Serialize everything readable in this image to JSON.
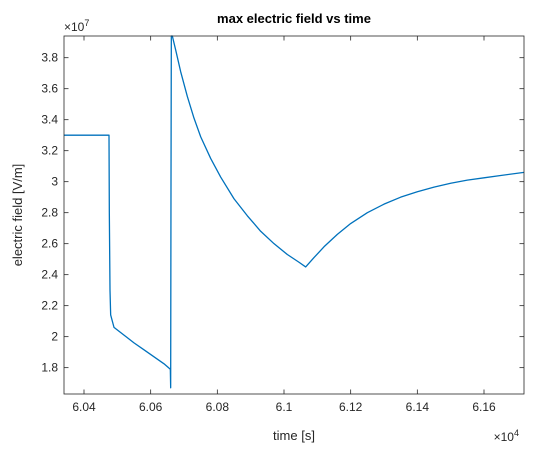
{
  "chart_data": {
    "type": "line",
    "title": "max electric field vs time",
    "xlabel": "time [s]",
    "ylabel": "electric field [V/m]",
    "x_multiplier": {
      "base": "×10",
      "exponent": "4"
    },
    "y_multiplier": {
      "base": "×10",
      "exponent": "7"
    },
    "xlim": [
      6.034,
      6.172
    ],
    "ylim": [
      1.63,
      3.94
    ],
    "x_ticks": [
      6.04,
      6.06,
      6.08,
      6.1,
      6.12,
      6.14,
      6.16
    ],
    "x_tick_labels": [
      "6.04",
      "6.06",
      "6.08",
      "6.1",
      "6.12",
      "6.14",
      "6.16"
    ],
    "y_ticks": [
      1.8,
      2.0,
      2.2,
      2.4,
      2.6,
      2.8,
      3.0,
      3.2,
      3.4,
      3.6,
      3.8
    ],
    "y_tick_labels": [
      "1.8",
      "2",
      "2.2",
      "2.4",
      "2.6",
      "2.8",
      "3",
      "3.2",
      "3.4",
      "3.6",
      "3.8"
    ],
    "grid": false,
    "line_color": "#0072BD",
    "series": [
      {
        "x": [
          6.034,
          6.0475,
          6.0476,
          6.0478,
          6.048,
          6.049,
          6.052,
          6.055,
          6.058,
          6.061,
          6.064,
          6.0659,
          6.066,
          6.0661,
          6.0662,
          6.0665,
          6.0675,
          6.069,
          6.071,
          6.073,
          6.075,
          6.078,
          6.081,
          6.085,
          6.089,
          6.093,
          6.097,
          6.101,
          6.1045,
          6.1065,
          6.109,
          6.112,
          6.116,
          6.12,
          6.125,
          6.13,
          6.135,
          6.14,
          6.145,
          6.15,
          6.155,
          6.16,
          6.165,
          6.172
        ],
        "y": [
          3.3,
          3.3,
          2.8,
          2.3,
          2.14,
          2.06,
          2.01,
          1.96,
          1.915,
          1.87,
          1.825,
          1.79,
          1.67,
          3.0,
          3.94,
          3.94,
          3.85,
          3.71,
          3.55,
          3.41,
          3.29,
          3.15,
          3.03,
          2.89,
          2.78,
          2.68,
          2.6,
          2.53,
          2.48,
          2.45,
          2.51,
          2.58,
          2.66,
          2.73,
          2.8,
          2.855,
          2.9,
          2.935,
          2.965,
          2.99,
          3.01,
          3.025,
          3.04,
          3.06
        ]
      }
    ]
  }
}
